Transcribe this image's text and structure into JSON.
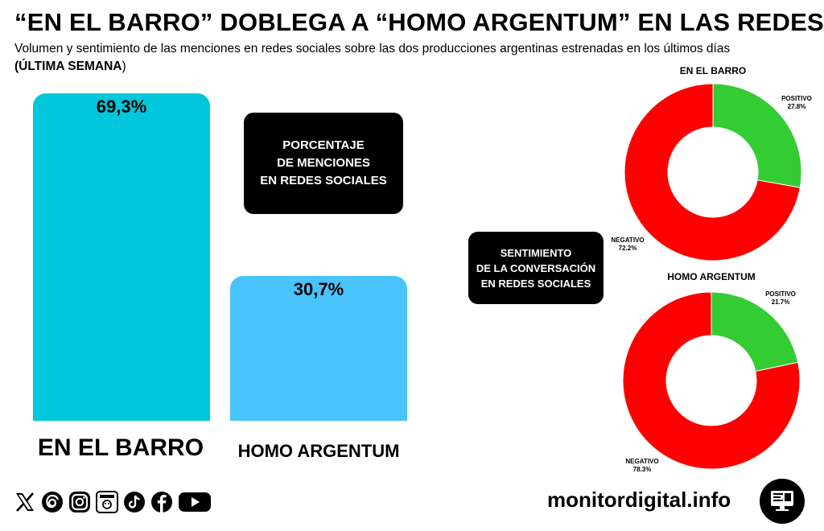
{
  "header": {
    "title": "“EN EL BARRO” DOBLEGA A “HOMO ARGENTUM” EN LAS REDES",
    "subtitle_main": "Volumen y sentimiento de las menciones en redes sociales sobre las dos producciones argentinas estrenadas en los últimos días",
    "subtitle_bold": "(ÚLTIMA SEMANA",
    "subtitle_close": ")"
  },
  "mentions_box": {
    "line1": "PORCENTAJE",
    "line2": "DE MENCIONES",
    "line3": "EN REDES SOCIALES"
  },
  "sentiment_box": {
    "line1": "SENTIMIENTO",
    "line2": "DE LA CONVERSACIÓN",
    "line3": "EN REDES SOCIALES"
  },
  "colors": {
    "bar_en_el_barro": "#00c7dc",
    "bar_homo_argentum": "#48c4fb",
    "positivo": "#33cc33",
    "negativo": "#ff0000"
  },
  "chart_data": [
    {
      "type": "bar",
      "categories": [
        "EN EL BARRO",
        "HOMO ARGENTUM"
      ],
      "values": [
        69.3,
        30.7
      ],
      "value_labels": [
        "69,3%",
        "30,7%"
      ],
      "ylim": [
        0,
        69.3
      ],
      "grid": false
    },
    {
      "type": "pie",
      "title": "EN EL BARRO",
      "donut": true,
      "slices": [
        {
          "name": "POSITIVO",
          "value": 27.8,
          "label": "27.8%"
        },
        {
          "name": "NEGATIVO",
          "value": 72.2,
          "label": "72.2%"
        }
      ]
    },
    {
      "type": "pie",
      "title": "HOMO ARGENTUM",
      "donut": true,
      "slices": [
        {
          "name": "POSITIVO",
          "value": 21.7,
          "label": "21.7%"
        },
        {
          "name": "NEGATIVO",
          "value": 78.3,
          "label": "78.3%"
        }
      ]
    }
  ],
  "footer": {
    "brand": "monitordigital.info",
    "icons": [
      "x-icon",
      "threads-icon",
      "instagram-icon",
      "newsletter-icon",
      "tiktok-icon",
      "facebook-icon",
      "youtube-icon"
    ]
  }
}
